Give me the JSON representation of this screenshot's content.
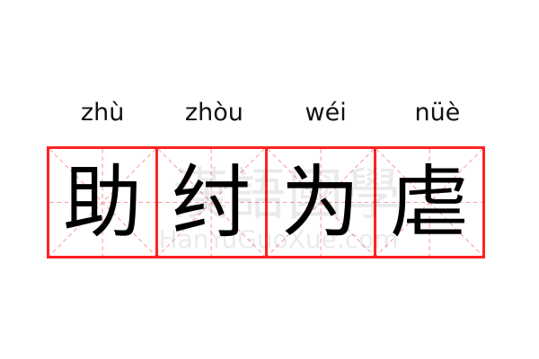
{
  "idiom": [
    {
      "pinyin": "zhù",
      "char": "助"
    },
    {
      "pinyin": "zhòu",
      "char": "纣"
    },
    {
      "pinyin": "wéi",
      "char": "为"
    },
    {
      "pinyin": "nüè",
      "char": "虐"
    }
  ],
  "watermark": {
    "chinese": "漢語國學",
    "latin": "HanYuGuoXue.com"
  },
  "colors": {
    "grid_border": "#ff2222",
    "guide_lines": "#f8a0a0",
    "text": "#000000"
  }
}
